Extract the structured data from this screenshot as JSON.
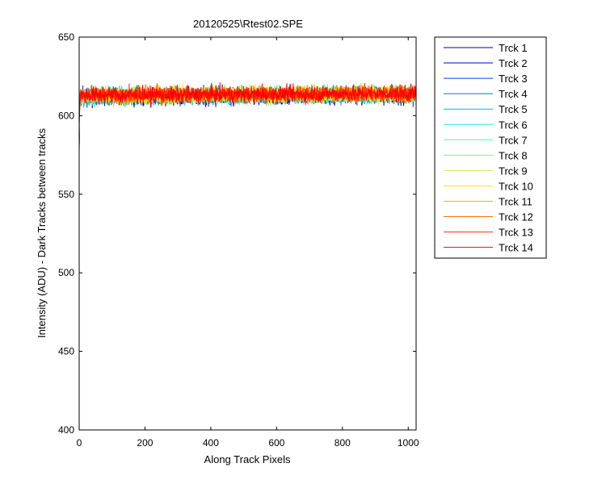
{
  "chart_data": {
    "type": "line",
    "title": "20120525\\Rtest02.SPE",
    "xlabel": "Along Track Pixels",
    "ylabel": "Intensity (ADU) - Dark Tracks between tracks",
    "xlim": [
      0,
      1024
    ],
    "ylim": [
      400,
      650
    ],
    "xticks": [
      0,
      200,
      400,
      600,
      800,
      1000
    ],
    "yticks": [
      400,
      450,
      500,
      550,
      600,
      650
    ],
    "grid": false,
    "legend_position": "outside-top-right",
    "x_points": 1024,
    "baseline_level": 612,
    "noise_band": [
      600,
      626
    ],
    "initial_dip": 577,
    "series": [
      {
        "name": "Trck 1",
        "color": "#00008F",
        "mean": 611.5
      },
      {
        "name": "Trck 2",
        "color": "#0000C8",
        "mean": 611.8
      },
      {
        "name": "Trck 3",
        "color": "#0040FF",
        "mean": 612.0
      },
      {
        "name": "Trck 4",
        "color": "#0080B0",
        "mean": 612.1
      },
      {
        "name": "Trck 5",
        "color": "#00B8E0",
        "mean": 612.2
      },
      {
        "name": "Trck 6",
        "color": "#20E8E8",
        "mean": 612.3
      },
      {
        "name": "Trck 7",
        "color": "#50F0C0",
        "mean": 612.4
      },
      {
        "name": "Trck 8",
        "color": "#80F080",
        "mean": 612.5
      },
      {
        "name": "Trck 9",
        "color": "#D0F040",
        "mean": 612.6
      },
      {
        "name": "Trck 10",
        "color": "#FFE800",
        "mean": 612.7
      },
      {
        "name": "Trck 11",
        "color": "#FFB000",
        "mean": 612.8
      },
      {
        "name": "Trck 12",
        "color": "#FF7000",
        "mean": 612.9
      },
      {
        "name": "Trck 13",
        "color": "#FF3000",
        "mean": 613.0
      },
      {
        "name": "Trck 14",
        "color": "#FF0000",
        "mean": 613.0
      }
    ]
  }
}
